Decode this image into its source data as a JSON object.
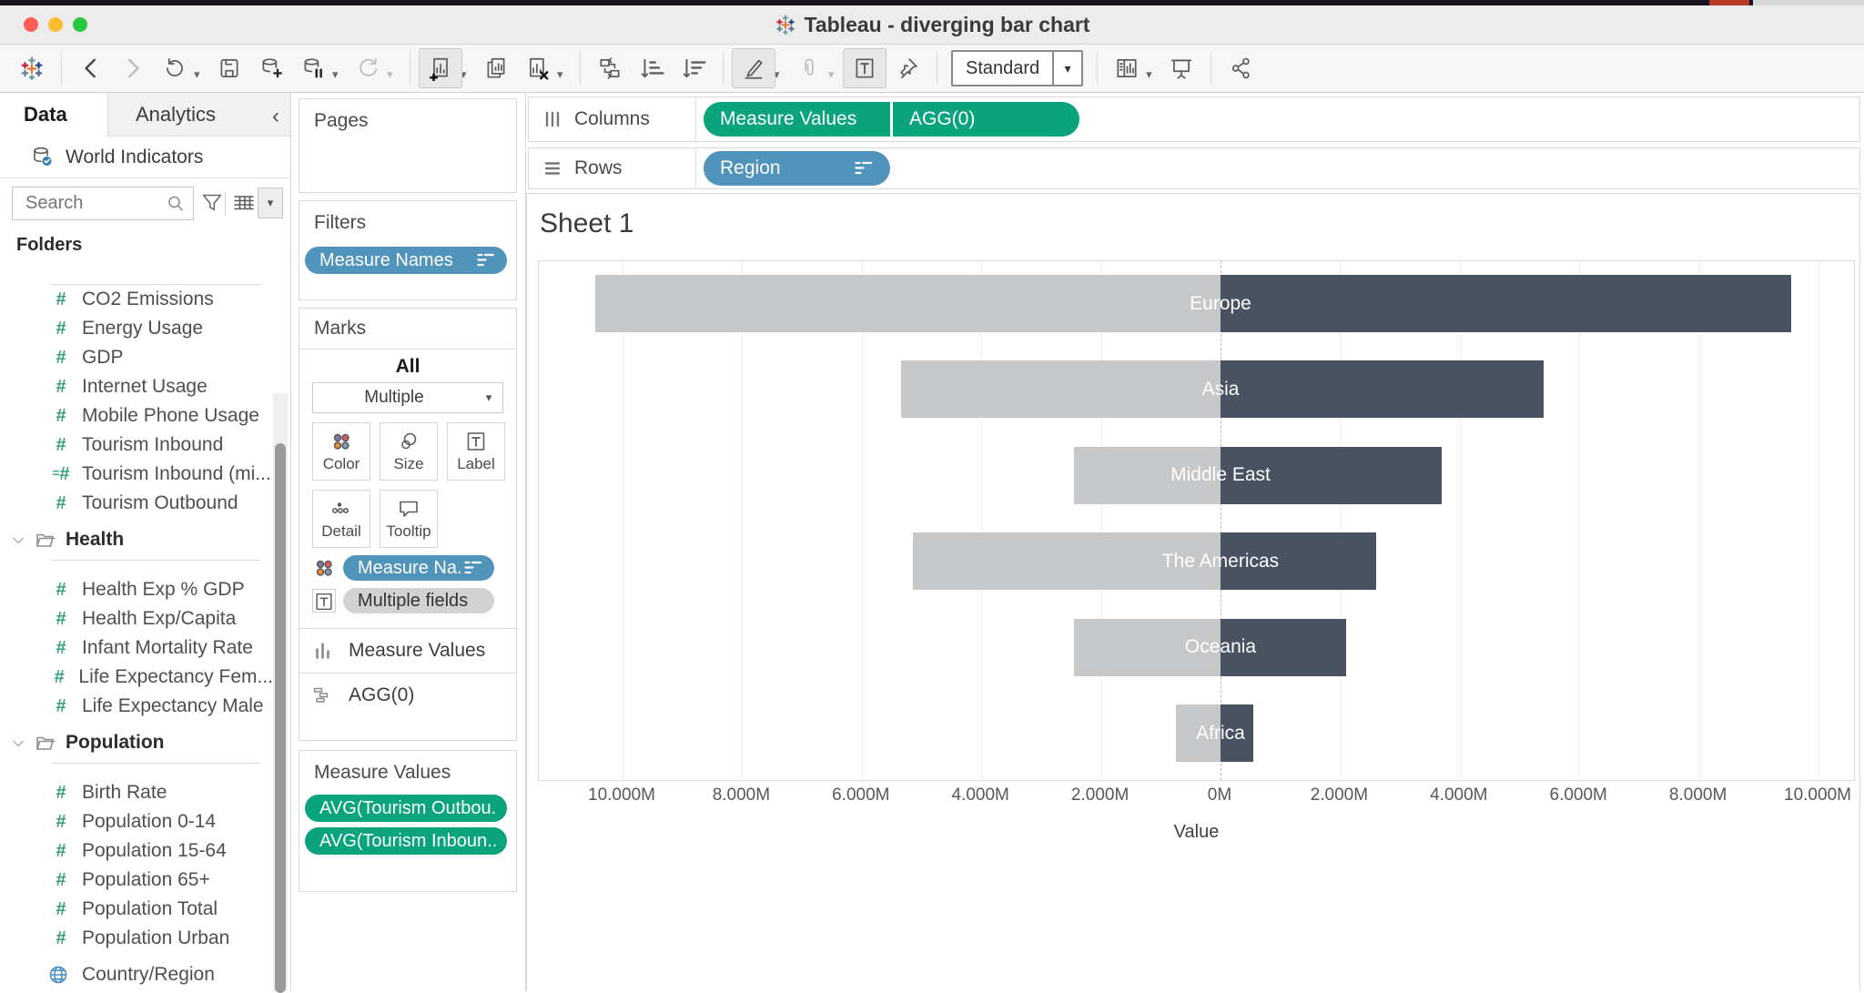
{
  "window": {
    "title": "Tableau - diverging bar chart"
  },
  "toolbar": {
    "view_mode": "Standard",
    "items": [
      {
        "name": "tableau-logo-icon",
        "interactable": false
      },
      {
        "name": "back-icon",
        "sep": true
      },
      {
        "name": "forward-icon",
        "disabled": true
      },
      {
        "name": "replay-icon",
        "caret": true
      },
      {
        "name": "save-icon"
      },
      {
        "name": "new-data-source-icon"
      },
      {
        "name": "pause-auto-updates-icon",
        "caret": true
      },
      {
        "name": "run-update-icon",
        "disabled": true,
        "caret": true
      },
      {
        "name": "new-worksheet-icon",
        "sep": true,
        "active": true,
        "caret": true
      },
      {
        "name": "duplicate-sheet-icon"
      },
      {
        "name": "clear-sheet-icon",
        "caret": true
      },
      {
        "name": "swap-rows-columns-icon",
        "sep": true
      },
      {
        "name": "sort-ascending-icon"
      },
      {
        "name": "sort-descending-icon"
      },
      {
        "name": "highlight-icon",
        "sep": true,
        "active": true,
        "caret": true
      },
      {
        "name": "group-members-icon",
        "disabled": true,
        "caret": true
      },
      {
        "name": "show-mark-labels-icon",
        "active": true
      },
      {
        "name": "fix-axes-icon"
      },
      {
        "name": "view-mode-select",
        "sep": true,
        "select": true
      },
      {
        "name": "show-hide-cards-icon",
        "sep": true,
        "caret": true
      },
      {
        "name": "presentation-mode-icon"
      },
      {
        "name": "share-icon",
        "sep": true
      }
    ]
  },
  "sidebar": {
    "tabs": [
      {
        "label": "Data"
      },
      {
        "label": "Analytics"
      }
    ],
    "datasource": "World Indicators",
    "search_placeholder": "Search",
    "folders_label": "Folders",
    "list": [
      {
        "type": "rule"
      },
      {
        "type": "field",
        "icon": "number-icon",
        "label": "CO2 Emissions"
      },
      {
        "type": "field",
        "icon": "number-icon",
        "label": "Energy Usage"
      },
      {
        "type": "field",
        "icon": "number-icon",
        "label": "GDP"
      },
      {
        "type": "field",
        "icon": "number-icon",
        "label": "Internet Usage"
      },
      {
        "type": "field",
        "icon": "number-icon",
        "label": "Mobile Phone Usage"
      },
      {
        "type": "field",
        "icon": "number-icon",
        "label": "Tourism Inbound"
      },
      {
        "type": "field",
        "icon": "calc-number-icon",
        "label": "Tourism Inbound (mi..."
      },
      {
        "type": "field",
        "icon": "number-icon",
        "label": "Tourism Outbound"
      },
      {
        "type": "folder",
        "label": "Health"
      },
      {
        "type": "rule"
      },
      {
        "type": "spacer16"
      },
      {
        "type": "field",
        "icon": "number-icon",
        "label": "Health Exp % GDP"
      },
      {
        "type": "field",
        "icon": "number-icon",
        "label": "Health Exp/Capita"
      },
      {
        "type": "field",
        "icon": "number-icon",
        "label": "Infant Mortality Rate"
      },
      {
        "type": "field",
        "icon": "number-icon",
        "label": "Life Expectancy Fem..."
      },
      {
        "type": "field",
        "icon": "number-icon",
        "label": "Life Expectancy Male"
      },
      {
        "type": "folder",
        "label": "Population"
      },
      {
        "type": "rule"
      },
      {
        "type": "spacer16"
      },
      {
        "type": "field",
        "icon": "number-icon",
        "label": "Birth Rate"
      },
      {
        "type": "field",
        "icon": "number-icon",
        "label": "Population 0-14"
      },
      {
        "type": "field",
        "icon": "number-icon",
        "label": "Population 15-64"
      },
      {
        "type": "field",
        "icon": "number-icon",
        "label": "Population 65+"
      },
      {
        "type": "field",
        "icon": "number-icon",
        "label": "Population Total"
      },
      {
        "type": "field",
        "icon": "number-icon",
        "label": "Population Urban"
      },
      {
        "type": "spacer8"
      },
      {
        "type": "field",
        "icon": "globe-icon",
        "label": "Country/Region"
      }
    ]
  },
  "shelf_cards": {
    "pages_label": "Pages",
    "filters_label": "Filters",
    "filters_pills": [
      {
        "label": "Measure Names",
        "color": "blue",
        "sort_icon": true
      }
    ],
    "marks": {
      "label": "Marks",
      "tab_all": "All",
      "mark_type": "Multiple",
      "buttons": [
        {
          "label": "Color"
        },
        {
          "label": "Size"
        },
        {
          "label": "Label"
        },
        {
          "label": "Detail"
        },
        {
          "label": "Tooltip"
        }
      ],
      "pills": [
        {
          "label": "Measure Na..",
          "color": "blue",
          "prefix": "color-dots-icon",
          "sort_icon": true
        },
        {
          "label": "Multiple fields",
          "color": "gray",
          "prefix": "text-icon"
        }
      ],
      "sections": [
        {
          "icon": "measure-values-icon",
          "label": "Measure Values"
        },
        {
          "icon": "agg-icon",
          "label": "AGG(0)"
        }
      ]
    },
    "measure_values": {
      "label": "Measure Values",
      "pills": [
        {
          "label": "AVG(Tourism Outbou..",
          "color": "green"
        },
        {
          "label": "AVG(Tourism Inboun..",
          "color": "green"
        }
      ]
    }
  },
  "shelves": {
    "columns": {
      "label": "Columns",
      "pills": [
        {
          "label": "Measure Values",
          "color": "green"
        },
        {
          "label": "AGG(0)",
          "color": "green"
        }
      ]
    },
    "rows": {
      "label": "Rows",
      "pills": [
        {
          "label": "Region",
          "color": "blue",
          "sort_icon": true
        }
      ]
    }
  },
  "sheet": {
    "title": "Sheet 1"
  },
  "chart_data": {
    "type": "bar",
    "subtype": "horizontal-diverging",
    "categories": [
      "Europe",
      "Asia",
      "Middle East",
      "The Americas",
      "Oceania",
      "Africa"
    ],
    "series": [
      {
        "name": "AVG(Tourism Outbound)",
        "side": "left",
        "color": "#c6c7c8",
        "values_m": [
          10.45,
          5.35,
          2.45,
          5.15,
          2.45,
          0.75
        ]
      },
      {
        "name": "AVG(Tourism Inbound)",
        "side": "right",
        "color": "#485261",
        "values_m": [
          9.55,
          5.4,
          3.7,
          2.6,
          2.1,
          0.55
        ]
      }
    ],
    "x_axis": {
      "title": "Value",
      "ticks": [
        "10.000M",
        "8.000M",
        "6.000M",
        "4.000M",
        "2.000M",
        "0M",
        "2.000M",
        "4.000M",
        "6.000M",
        "8.000M",
        "10.000M"
      ],
      "tick_values_m": [
        -10,
        -8,
        -6,
        -4,
        -2,
        0,
        2,
        4,
        6,
        8,
        10
      ]
    },
    "zero_reference_line": true,
    "bar_labels_at_zero": true,
    "grid": true,
    "legend": "none"
  },
  "colors": {
    "bar_left": "#c6c7c8",
    "bar_right": "#485261",
    "pill_green": "#0aa47c",
    "pill_blue": "#5093bb",
    "pill_gray": "#d2d2d2",
    "field_icon_green": "#35a07f",
    "traffic_red": "#ff5f57",
    "traffic_yellow": "#febc2e",
    "traffic_green": "#28c840"
  }
}
